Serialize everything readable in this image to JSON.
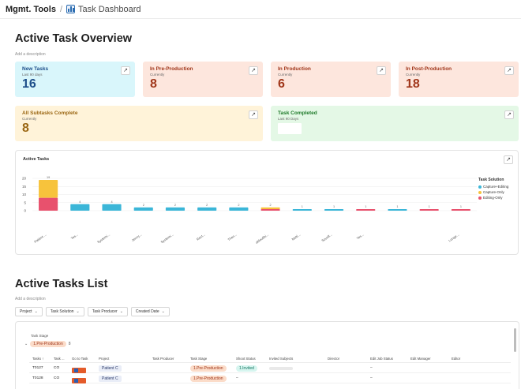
{
  "breadcrumb": {
    "org": "Mgmt. Tools",
    "separator": "/",
    "page": "Task Dashboard"
  },
  "overview": {
    "title": "Active Task Overview",
    "description": "Add a description",
    "cards": [
      {
        "title": "New Tasks",
        "sub": "Last 90 days",
        "value": "16"
      },
      {
        "title": "In Pre-Production",
        "sub": "Currently",
        "value": "8"
      },
      {
        "title": "In Production",
        "sub": "Currently",
        "value": "6"
      },
      {
        "title": "In Post-Production",
        "sub": "Currently",
        "value": "18"
      },
      {
        "title": "All Subtasks Complete",
        "sub": "Currently",
        "value": "8"
      },
      {
        "title": "Task Completed",
        "sub": "Last 90 Days",
        "value": ""
      }
    ],
    "open_icon": "↗"
  },
  "chart_panel": {
    "title": "Active Tasks"
  },
  "chart_data": {
    "type": "bar",
    "title": "Active Tasks",
    "stacked": true,
    "ylim": [
      0,
      20
    ],
    "yticks": [
      "20",
      "15",
      "10",
      "5",
      "0"
    ],
    "categories": [
      "Patient ...",
      "Tes...",
      "Systemi...",
      "Jenny...",
      "Systemi...",
      "Rect...",
      "Then...",
      "aMoulibi...",
      "Netti...",
      "Sourill...",
      "Tes...",
      "",
      "",
      "Longe..."
    ],
    "series": [
      {
        "name": "Capture+Editing",
        "color": "#3bb6d8",
        "values": [
          0,
          4,
          4,
          2,
          2,
          2,
          2,
          0,
          1,
          1,
          0,
          1,
          0,
          0
        ]
      },
      {
        "name": "Capture-Only",
        "color": "#f7c33c",
        "values": [
          11,
          0,
          0,
          0,
          0,
          0,
          0,
          1,
          0,
          0,
          0,
          0,
          0,
          0
        ]
      },
      {
        "name": "Editing-Only",
        "color": "#e8516d",
        "values": [
          8,
          0,
          0,
          0,
          0,
          0,
          0,
          1,
          0,
          0,
          1,
          0,
          1,
          1
        ]
      }
    ],
    "data_labels": [
      "19",
      "4",
      "4",
      "2",
      "2",
      "2",
      "2",
      "2",
      "1",
      "1",
      "1",
      "1",
      "1",
      "1"
    ],
    "legend": {
      "title": "Task Solution",
      "position": "right"
    }
  },
  "list": {
    "title": "Active Tasks List",
    "description": "Add a description",
    "filters": [
      "Project",
      "Task Solution",
      "Task Producer",
      "Created Date"
    ],
    "stage_label": "Task Stage",
    "group": {
      "label": "1.Pre-Production",
      "count": "8"
    },
    "columns": [
      "Tasks",
      "Task ...",
      "Go to Task",
      "Project",
      "Task Producer",
      "Task Stage",
      "Shoot Status",
      "Invited Subjects",
      "Director",
      "Edit Job Status",
      "Edit Manager",
      "Editor"
    ],
    "sort_indicator": "↑",
    "rows": [
      {
        "task": "T0127",
        "type": "CO",
        "project": "Patient C",
        "stage": "1.Pre-Production",
        "shoot": "1.Invited",
        "edit_status": "–"
      },
      {
        "task": "T0128",
        "type": "CO",
        "project": "Patient C",
        "stage": "1.Pre-Production",
        "shoot": "–",
        "edit_status": "–"
      }
    ]
  }
}
